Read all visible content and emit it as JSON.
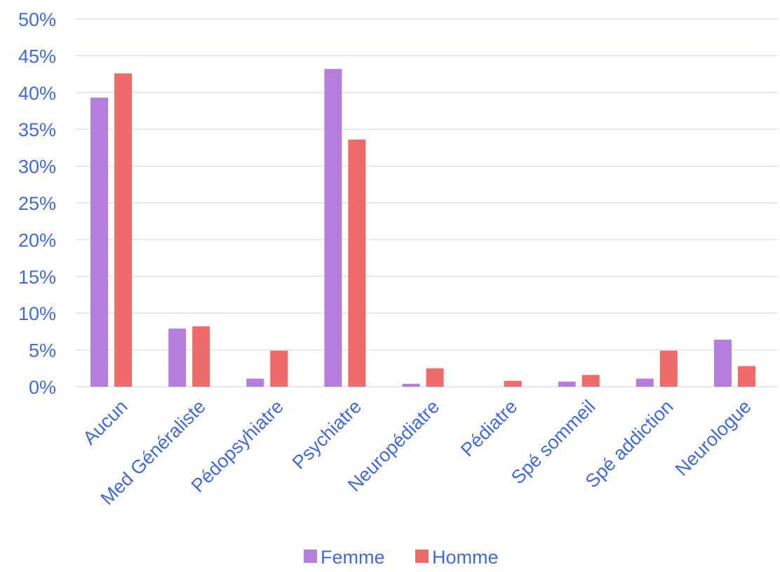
{
  "chart_data": {
    "type": "bar",
    "categories": [
      "Aucun",
      "Med Généraliste",
      "Pédopsyhiatre",
      "Psychiatre",
      "Neuropédiatre",
      "Pédiatre",
      "Spé sommeil",
      "Spé addiction",
      "Neurologue"
    ],
    "series": [
      {
        "name": "Femme",
        "color": "#B57EDC",
        "values": [
          39.3,
          7.9,
          1.1,
          43.2,
          0.4,
          0.0,
          0.7,
          1.1,
          6.4
        ]
      },
      {
        "name": "Homme",
        "color": "#EE6B69",
        "values": [
          42.6,
          8.2,
          4.9,
          33.6,
          2.5,
          0.8,
          1.6,
          4.9,
          2.8
        ]
      }
    ],
    "yticks": [
      "0%",
      "5%",
      "10%",
      "15%",
      "20%",
      "25%",
      "30%",
      "35%",
      "40%",
      "45%",
      "50%"
    ],
    "ylim": [
      0,
      50
    ],
    "y_unit": "percent",
    "grid": true,
    "legend_position": "bottom",
    "text_color": "#4169E1",
    "grid_color": "#D9E1F2",
    "title": "",
    "xlabel": "",
    "ylabel": ""
  }
}
